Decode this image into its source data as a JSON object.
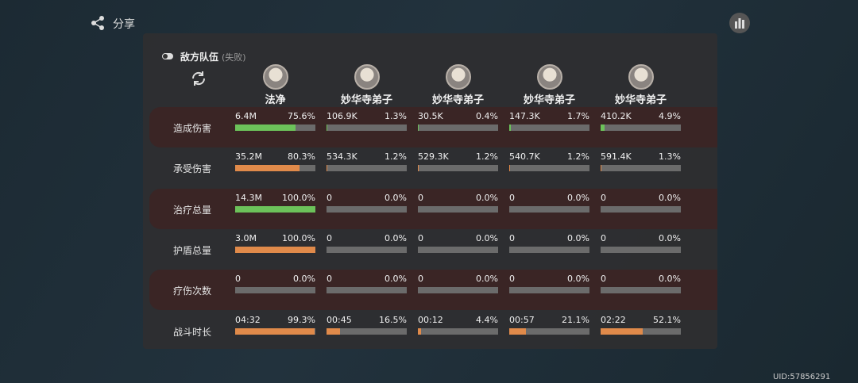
{
  "share": "分享",
  "team_title": "敌方队伍",
  "team_result": "(失败)",
  "uid": "UID:57856291",
  "players": [
    "法净",
    "妙华寺弟子",
    "妙华寺弟子",
    "妙华寺弟子",
    "妙华寺弟子"
  ],
  "rows": [
    {
      "label": "造成伤害",
      "bar_color": "#6cc25a",
      "cells": [
        {
          "value": "6.4M",
          "percent": {
            "value": 75.6,
            "label": "75.6%"
          }
        },
        {
          "value": "106.9K",
          "percent": {
            "value": 1.3,
            "label": "1.3%"
          }
        },
        {
          "value": "30.5K",
          "percent": {
            "value": 0.4,
            "label": "0.4%"
          }
        },
        {
          "value": "147.3K",
          "percent": {
            "value": 1.7,
            "label": "1.7%"
          }
        },
        {
          "value": "410.2K",
          "percent": {
            "value": 4.9,
            "label": "4.9%"
          }
        }
      ]
    },
    {
      "label": "承受伤害",
      "bar_color": "#e08a4a",
      "cells": [
        {
          "value": "35.2M",
          "percent": {
            "value": 80.3,
            "label": "80.3%"
          }
        },
        {
          "value": "534.3K",
          "percent": {
            "value": 1.2,
            "label": "1.2%"
          }
        },
        {
          "value": "529.3K",
          "percent": {
            "value": 1.2,
            "label": "1.2%"
          }
        },
        {
          "value": "540.7K",
          "percent": {
            "value": 1.2,
            "label": "1.2%"
          }
        },
        {
          "value": "591.4K",
          "percent": {
            "value": 1.3,
            "label": "1.3%"
          }
        }
      ]
    },
    {
      "label": "治疗总量",
      "bar_color": "#6cc25a",
      "cells": [
        {
          "value": "14.3M",
          "percent": {
            "value": 100,
            "label": "100.0%"
          }
        },
        {
          "value": "0",
          "percent": {
            "value": 0,
            "label": "0.0%"
          }
        },
        {
          "value": "0",
          "percent": {
            "value": 0,
            "label": "0.0%"
          }
        },
        {
          "value": "0",
          "percent": {
            "value": 0,
            "label": "0.0%"
          }
        },
        {
          "value": "0",
          "percent": {
            "value": 0,
            "label": "0.0%"
          }
        }
      ]
    },
    {
      "label": "护盾总量",
      "bar_color": "#e08a4a",
      "cells": [
        {
          "value": "3.0M",
          "percent": {
            "value": 100,
            "label": "100.0%"
          }
        },
        {
          "value": "0",
          "percent": {
            "value": 0,
            "label": "0.0%"
          }
        },
        {
          "value": "0",
          "percent": {
            "value": 0,
            "label": "0.0%"
          }
        },
        {
          "value": "0",
          "percent": {
            "value": 0,
            "label": "0.0%"
          }
        },
        {
          "value": "0",
          "percent": {
            "value": 0,
            "label": "0.0%"
          }
        }
      ]
    },
    {
      "label": "疗伤次数",
      "bar_color": "#e08a4a",
      "cells": [
        {
          "value": "0",
          "percent": {
            "value": 0,
            "label": "0.0%"
          }
        },
        {
          "value": "0",
          "percent": {
            "value": 0,
            "label": "0.0%"
          }
        },
        {
          "value": "0",
          "percent": {
            "value": 0,
            "label": "0.0%"
          }
        },
        {
          "value": "0",
          "percent": {
            "value": 0,
            "label": "0.0%"
          }
        },
        {
          "value": "0",
          "percent": {
            "value": 0,
            "label": "0.0%"
          }
        }
      ]
    },
    {
      "label": "战斗时长",
      "bar_color": "#e08a4a",
      "cells": [
        {
          "value": "04:32",
          "percent": {
            "value": 99.3,
            "label": "99.3%"
          }
        },
        {
          "value": "00:45",
          "percent": {
            "value": 16.5,
            "label": "16.5%"
          }
        },
        {
          "value": "00:12",
          "percent": {
            "value": 4.4,
            "label": "4.4%"
          }
        },
        {
          "value": "00:57",
          "percent": {
            "value": 21.1,
            "label": "21.1%"
          }
        },
        {
          "value": "02:22",
          "percent": {
            "value": 52.1,
            "label": "52.1%"
          }
        }
      ]
    }
  ]
}
